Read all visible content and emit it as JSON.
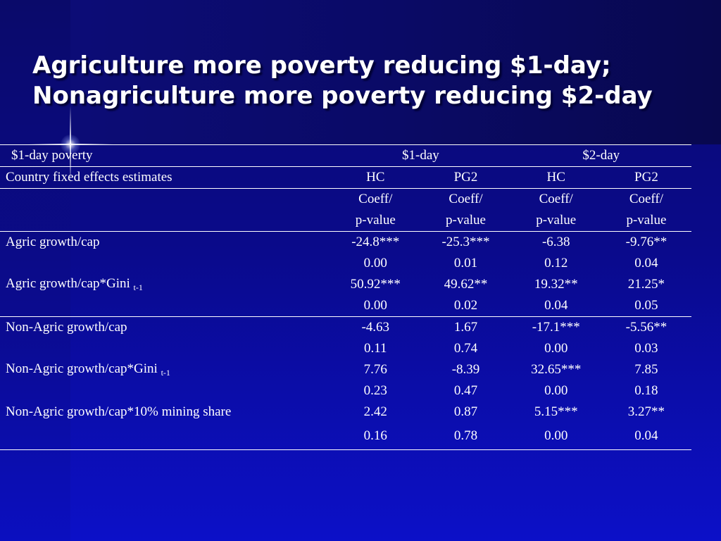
{
  "slide": {
    "title_lines": [
      "Agriculture more poverty reducing $1-day;",
      "Nonagriculture more poverty reducing $2-day"
    ]
  },
  "table": {
    "header_row1": {
      "label": "$1-day poverty",
      "group1": "$1-day",
      "group2": "$2-day"
    },
    "header_row2": {
      "label": "Country fixed effects estimates",
      "cols": [
        "HC",
        "PG2",
        "HC",
        "PG2"
      ]
    },
    "header_row3": {
      "line1": [
        "Coeff/",
        "Coeff/",
        "Coeff/",
        "Coeff/"
      ],
      "line2": [
        "p-value",
        "p-value",
        "p-value",
        "p-value"
      ]
    },
    "rows": [
      {
        "label": "Agric growth/cap",
        "subscript": "",
        "values": [
          "-24.8***",
          "-25.3***",
          "-6.38",
          "-9.76**"
        ]
      },
      {
        "label": "",
        "subscript": "",
        "values": [
          "0.00",
          "0.01",
          "0.12",
          "0.04"
        ]
      },
      {
        "label": "Agric growth/cap*Gini",
        "subscript": "t-1",
        "values": [
          "50.92***",
          "49.62**",
          "19.32**",
          "21.25*"
        ]
      },
      {
        "label": "",
        "subscript": "",
        "values": [
          "0.00",
          "0.02",
          "0.04",
          "0.05"
        ]
      },
      {
        "label": "Non-Agric growth/cap",
        "subscript": "",
        "values": [
          "-4.63",
          "1.67",
          "-17.1***",
          "-5.56**"
        ]
      },
      {
        "label": "",
        "subscript": "",
        "values": [
          "0.11",
          "0.74",
          "0.00",
          "0.03"
        ]
      },
      {
        "label": "Non-Agric growth/cap*Gini",
        "subscript": "t-1",
        "values": [
          "7.76",
          "-8.39",
          "32.65***",
          "7.85"
        ]
      },
      {
        "label": "",
        "subscript": "",
        "values": [
          "0.23",
          "0.47",
          "0.00",
          "0.18"
        ]
      },
      {
        "label": "Non-Agric growth/cap*10% mining share",
        "subscript": "",
        "values": [
          "2.42",
          "0.87",
          "5.15***",
          "3.27**"
        ]
      },
      {
        "label": "",
        "subscript": "",
        "values": [
          "0.16",
          "0.78",
          "0.00",
          "0.04"
        ]
      }
    ]
  }
}
